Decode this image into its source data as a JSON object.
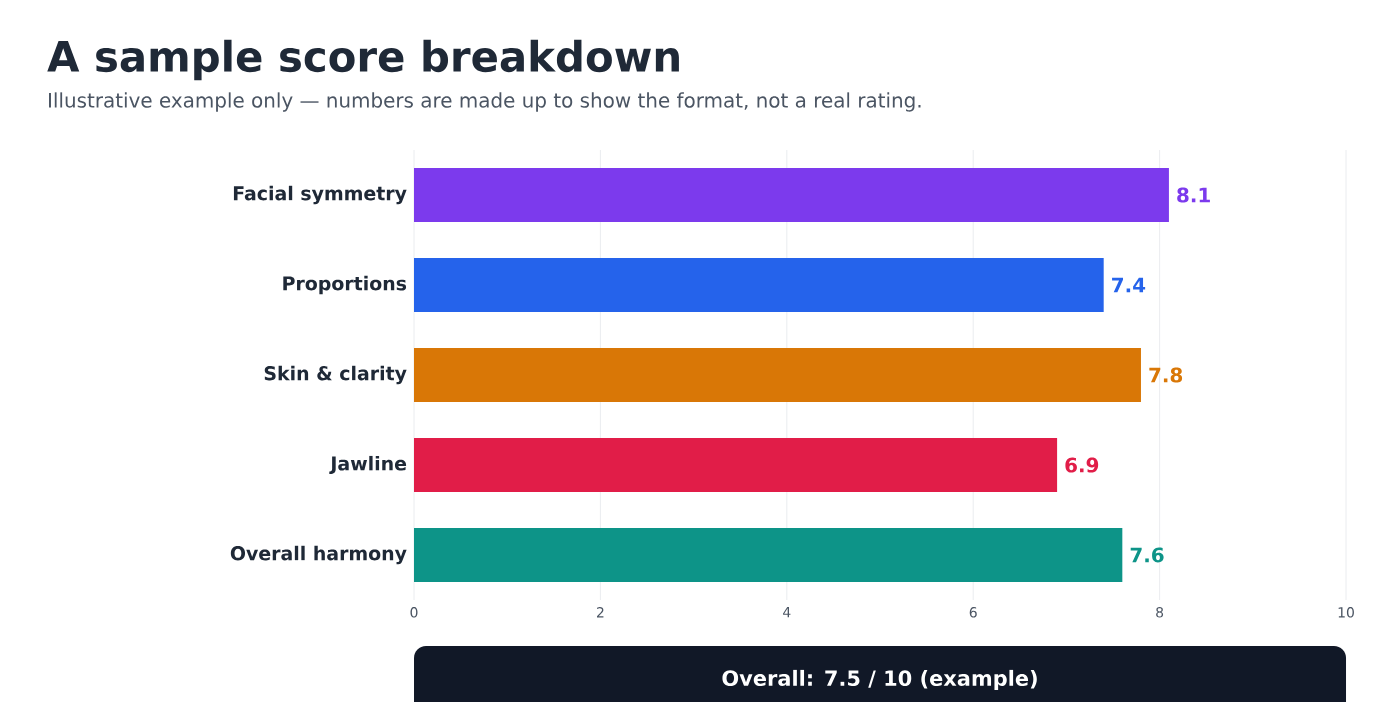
{
  "chart_data": {
    "type": "bar",
    "orientation": "horizontal",
    "title": "A sample score breakdown",
    "subtitle": "Illustrative example only — numbers are made up to show the format, not a real rating.",
    "categories": [
      "Facial symmetry",
      "Proportions",
      "Skin & clarity",
      "Jawline",
      "Overall harmony"
    ],
    "values": [
      8.1,
      7.4,
      7.8,
      6.9,
      7.6
    ],
    "colors": [
      "#7c3aed",
      "#2563eb",
      "#d97706",
      "#e11d48",
      "#0d9488"
    ],
    "xlim": [
      0,
      10
    ],
    "xticks": [
      0,
      2,
      4,
      6,
      8,
      10
    ],
    "grid": "x",
    "data_labels": true,
    "annotations": [
      "Overall: 7.5 / 10   (example)"
    ]
  }
}
